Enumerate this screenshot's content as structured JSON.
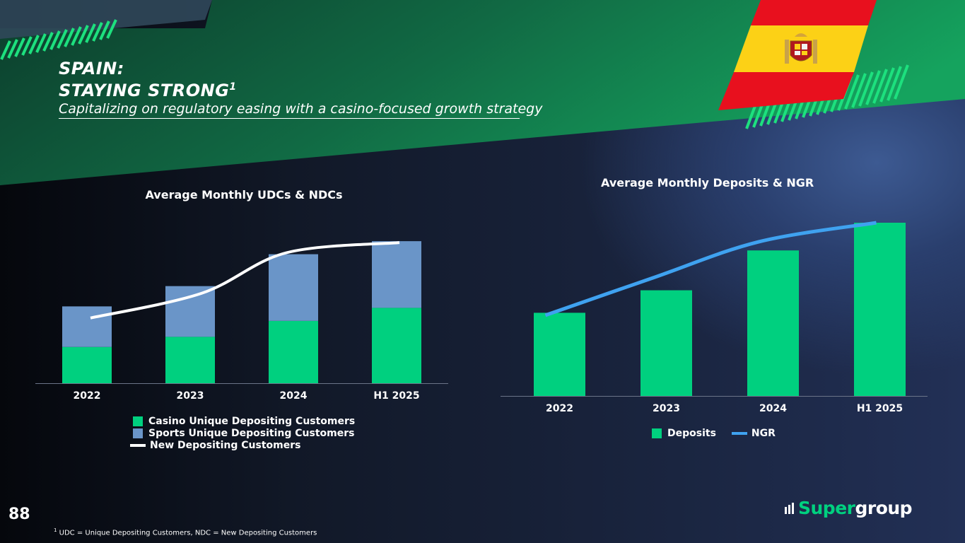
{
  "page": {
    "title_line1": "SPAIN:",
    "title_line2": "STAYING STRONG",
    "title_sup": "1",
    "subtitle": "Capitalizing on regulatory easing with a casino-focused growth strategy",
    "page_number": "88",
    "footnote_sup": "1",
    "footnote": " UDC = Unique Depositing Customers, NDC = New Depositing Customers",
    "logo_part1": "Super",
    "logo_part2": "group"
  },
  "colors": {
    "casino": "#00d07f",
    "sports": "#6a95c8",
    "ndc_line": "#ffffff",
    "deposits": "#00d07f",
    "ngr": "#3fa2f0",
    "axis": "#6b7488",
    "logo_accent": "#00d07f",
    "flag_red": "#e8101e",
    "flag_yellow": "#fcd116",
    "dark_green": "#0f6a43",
    "bright_green": "#16b464"
  },
  "chart_data": [
    {
      "type": "bar",
      "stacked": true,
      "title": "Average Monthly UDCs & NDCs",
      "categories": [
        "2022",
        "2023",
        "2024",
        "H1 2025"
      ],
      "series": [
        {
          "name": "Casino Unique Depositing Customers",
          "type": "bar",
          "values": [
            25,
            32,
            43,
            52
          ]
        },
        {
          "name": "Sports Unique Depositing Customers",
          "type": "bar",
          "values": [
            28,
            35,
            46,
            46
          ]
        },
        {
          "name": "New Depositing Customers",
          "type": "line",
          "values": [
            45,
            62,
            90,
            97
          ]
        }
      ],
      "ylim": [
        0,
        100
      ],
      "xlabel": "",
      "ylabel": "",
      "legend_position": "bottom"
    },
    {
      "type": "bar",
      "title": "Average Monthly Deposits & NGR",
      "categories": [
        "2022",
        "2023",
        "2024",
        "H1 2025"
      ],
      "series": [
        {
          "name": "Deposits",
          "type": "bar",
          "values": [
            48,
            61,
            84,
            100
          ]
        },
        {
          "name": "NGR",
          "type": "line",
          "values": [
            47,
            68,
            89,
            100
          ]
        }
      ],
      "ylim": [
        0,
        100
      ],
      "xlabel": "",
      "ylabel": "",
      "legend_position": "bottom"
    }
  ]
}
